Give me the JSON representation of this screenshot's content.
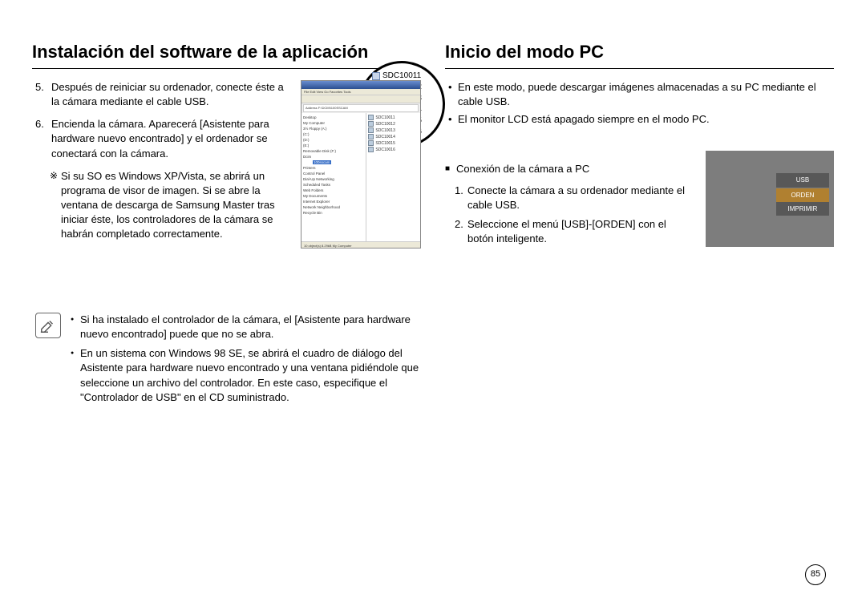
{
  "left": {
    "heading": "Instalación del software de la aplicación",
    "step5_num": "5.",
    "step5": "Después de reiniciar su ordenador, conecte éste a la cámara mediante el cable USB.",
    "step6_num": "6.",
    "step6": "Encienda la cámara. Aparecerá [Asistente para hardware nuevo encontrado] y el ordenador se conectará con la cámara.",
    "star": "Si su SO es Windows XP/Vista, se abrirá un programa de visor de imagen. Si se abre la ventana de descarga de Samsung Master tras iniciar éste, los controladores de la cámara se habrán completado correctamente.",
    "note1": "Si ha instalado el controlador de la cámara, el [Asistente para hardware nuevo encontrado] puede que no se abra.",
    "note2": "En un sistema con Windows 98 SE, se abrirá el cuadro de diálogo del Asistente para hardware nuevo encontrado y una ventana pidiéndole que seleccione un archivo del controlador. En este caso, especifique el \"Controlador de USB\" en el CD suministrado."
  },
  "explorer": {
    "title": "Exploring - 100sscam",
    "menu": "File  Edit  View  Go  Favorites  Tools",
    "address": "Address  F:\\DCIM\\100SSCAM",
    "tree": [
      "Desktop",
      " My Computer",
      "  3½ Floppy (A:)",
      "  (C:)",
      "  (D:)",
      "  (E:)",
      "  Removable Disk (F:)",
      "   Dcim",
      "    100sscam",
      "  Printers",
      "  Control Panel",
      "  Dial-Up Networking",
      "  Scheduled Tasks",
      "  Web Folders",
      " My Documents",
      " Internet Explorer",
      " Network Neighborhood",
      " Recycle Bin"
    ],
    "tree_hl_index": 8,
    "files": [
      "SDC10011",
      "SDC10012",
      "SDC10013",
      "SDC10014",
      "SDC10015",
      "SDC10016"
    ],
    "status": "10 object(s)        8.29kB   My Computer"
  },
  "bubble": [
    "SDC10011",
    "SDC10012",
    "SDC10013",
    "SDC10014",
    "SDC10015",
    "SDC10016"
  ],
  "right": {
    "heading": "Inicio del modo PC",
    "b1": "En este modo, puede descargar imágenes almacenadas a su PC mediante el cable USB.",
    "b2": "El monitor LCD está apagado siempre en el modo PC.",
    "sq": "Conexión de la cámara a PC",
    "s1_num": "1.",
    "s1": "Conecte la cámara a su ordenador mediante el cable USB.",
    "s2_num": "2.",
    "s2": "Seleccione el menú [USB]-[ORDEN] con el botón inteligente."
  },
  "cam_menu": {
    "usb": "USB",
    "orden": "ORDEN",
    "imprimir": "IMPRIMIR"
  },
  "page_number": "85"
}
